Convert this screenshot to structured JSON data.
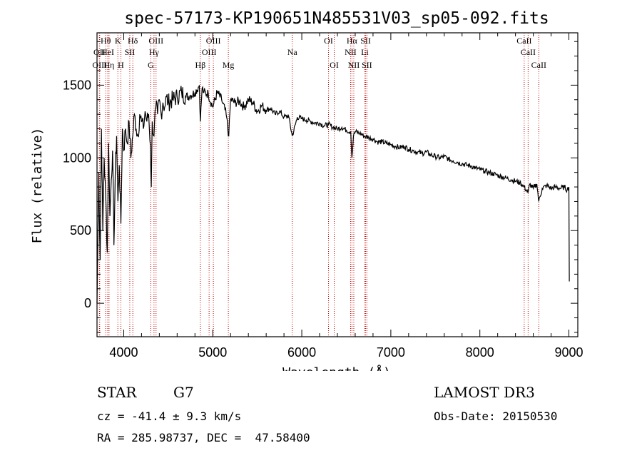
{
  "title": "spec-57173-KP190651N485531V03_sp05-092.fits",
  "chart_data": {
    "type": "line",
    "xlabel": "Wavelength (Å)",
    "ylabel": "Flux (relative)",
    "xlim": [
      3700,
      9100
    ],
    "ylim": [
      -230,
      1860
    ],
    "xticks": [
      4000,
      5000,
      6000,
      7000,
      8000,
      9000
    ],
    "yticks": [
      0,
      500,
      1000,
      1500
    ],
    "line_color": "#000000",
    "marker_color": "#cc0000",
    "series": [
      {
        "name": "flux",
        "x": [
          3700,
          3720,
          3735,
          3750,
          3765,
          3780,
          3800,
          3815,
          3830,
          3845,
          3860,
          3875,
          3890,
          3905,
          3920,
          3935,
          3950,
          3968,
          3985,
          4000,
          4020,
          4040,
          4060,
          4080,
          4101,
          4120,
          4140,
          4160,
          4180,
          4200,
          4220,
          4240,
          4260,
          4280,
          4300,
          4310,
          4320,
          4340,
          4360,
          4380,
          4400,
          4420,
          4440,
          4460,
          4480,
          4500,
          4550,
          4600,
          4650,
          4700,
          4750,
          4800,
          4850,
          4861,
          4880,
          4900,
          4950,
          5000,
          5050,
          5100,
          5150,
          5180,
          5200,
          5250,
          5300,
          5350,
          5400,
          5450,
          5500,
          5550,
          5600,
          5650,
          5700,
          5750,
          5800,
          5850,
          5893,
          5950,
          6000,
          6050,
          6100,
          6150,
          6200,
          6250,
          6300,
          6350,
          6400,
          6450,
          6500,
          6550,
          6563,
          6580,
          6600,
          6650,
          6700,
          6750,
          6800,
          6850,
          6900,
          6950,
          7000,
          7050,
          7100,
          7150,
          7200,
          7250,
          7300,
          7350,
          7400,
          7450,
          7500,
          7550,
          7600,
          7650,
          7700,
          7750,
          7800,
          7850,
          7900,
          7950,
          8000,
          8050,
          8100,
          8150,
          8200,
          8250,
          8300,
          8350,
          8400,
          8450,
          8498,
          8520,
          8542,
          8560,
          8600,
          8640,
          8662,
          8700,
          8750,
          8800,
          8850,
          8900,
          8950,
          8980,
          9000,
          9005
        ],
        "y": [
          0,
          900,
          300,
          1200,
          500,
          1000,
          700,
          350,
          1100,
          600,
          850,
          1050,
          400,
          900,
          1150,
          700,
          950,
          550,
          1200,
          1050,
          1200,
          1100,
          1250,
          1000,
          1150,
          1300,
          1200,
          1150,
          1300,
          1250,
          1200,
          1320,
          1250,
          1300,
          1080,
          800,
          1250,
          1150,
          1350,
          1300,
          1400,
          1300,
          1380,
          1350,
          1420,
          1380,
          1400,
          1420,
          1450,
          1420,
          1430,
          1450,
          1500,
          1250,
          1480,
          1450,
          1440,
          1350,
          1450,
          1400,
          1300,
          1150,
          1400,
          1380,
          1390,
          1350,
          1400,
          1380,
          1320,
          1360,
          1330,
          1340,
          1300,
          1320,
          1280,
          1290,
          1150,
          1280,
          1270,
          1260,
          1250,
          1240,
          1240,
          1220,
          1230,
          1210,
          1200,
          1210,
          1190,
          1180,
          1000,
          1150,
          1180,
          1170,
          1150,
          1140,
          1130,
          1110,
          1110,
          1100,
          1090,
          1080,
          1070,
          1080,
          1060,
          1050,
          1040,
          1030,
          1040,
          1020,
          1010,
          1000,
          1010,
          990,
          980,
          970,
          960,
          950,
          945,
          930,
          920,
          910,
          900,
          890,
          880,
          870,
          860,
          850,
          840,
          830,
          800,
          780,
          760,
          820,
          790,
          820,
          700,
          790,
          810,
          790,
          800,
          790,
          800,
          780,
          800,
          150
        ]
      }
    ],
    "line_markers": [
      {
        "name": "Hθ",
        "x": 3798,
        "row": 0
      },
      {
        "name": "OII",
        "x": 3727,
        "row": 1
      },
      {
        "name": "OIII",
        "x": 3730,
        "row": 2
      },
      {
        "name": "HeI",
        "x": 3820,
        "row": 1
      },
      {
        "name": "Hη",
        "x": 3835,
        "row": 2
      },
      {
        "name": "K",
        "x": 3934,
        "row": 0
      },
      {
        "name": "SII",
        "x": 4068,
        "row": 1
      },
      {
        "name": "H",
        "x": 3968,
        "row": 2
      },
      {
        "name": "Hδ",
        "x": 4102,
        "row": 0
      },
      {
        "name": "OIII",
        "x": 4363,
        "row": 0
      },
      {
        "name": "Hγ",
        "x": 4340,
        "row": 1
      },
      {
        "name": "G",
        "x": 4304,
        "row": 2
      },
      {
        "name": "OIII",
        "x": 5007,
        "row": 0
      },
      {
        "name": "OIII",
        "x": 4959,
        "row": 1
      },
      {
        "name": "Hβ",
        "x": 4861,
        "row": 2
      },
      {
        "name": "Mg",
        "x": 5175,
        "row": 2
      },
      {
        "name": "Na",
        "x": 5893,
        "row": 1
      },
      {
        "name": "OI",
        "x": 6300,
        "row": 0
      },
      {
        "name": "OI",
        "x": 6364,
        "row": 2
      },
      {
        "name": "Hα",
        "x": 6563,
        "row": 0
      },
      {
        "name": "NII",
        "x": 6548,
        "row": 1
      },
      {
        "name": "NII",
        "x": 6584,
        "row": 2
      },
      {
        "name": "SII",
        "x": 6717,
        "row": 0
      },
      {
        "name": "Li",
        "x": 6708,
        "row": 1
      },
      {
        "name": "SII",
        "x": 6731,
        "row": 2
      },
      {
        "name": "CaII",
        "x": 8498,
        "row": 0
      },
      {
        "name": "CaII",
        "x": 8542,
        "row": 1
      },
      {
        "name": "CaII",
        "x": 8662,
        "row": 2
      }
    ]
  },
  "info": {
    "object_class": "STAR",
    "subclass": "G7",
    "redshift": "cz = -41.4 ± 9.3 km/s",
    "coords": "RA = 285.98737, DEC =  47.58400",
    "survey": "LAMOST DR3",
    "obs_date": "Obs-Date: 20150530"
  }
}
